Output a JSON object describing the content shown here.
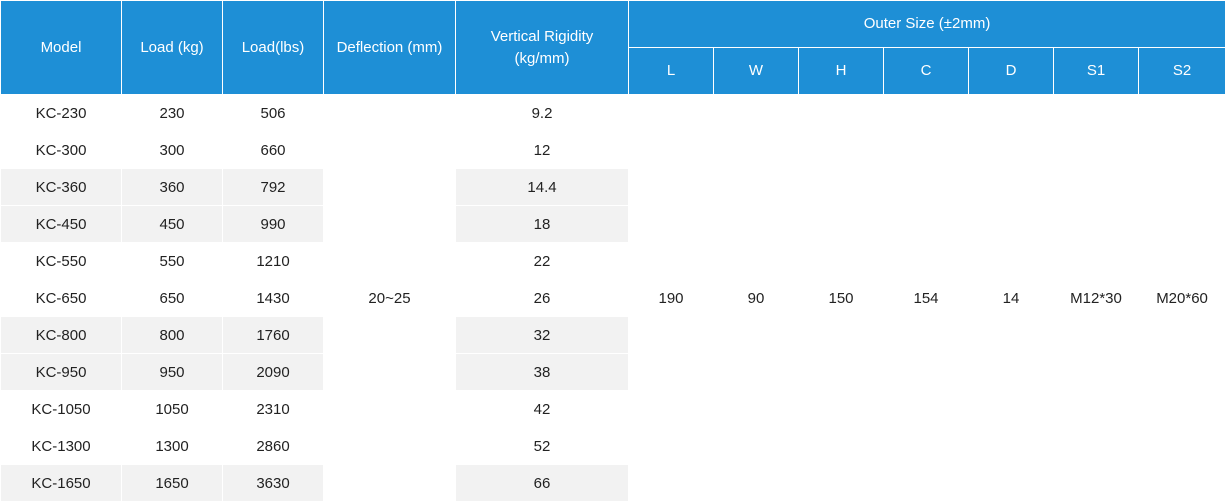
{
  "headers": {
    "model": "Model",
    "load_kg": "Load (kg)",
    "load_lbs": "Load(lbs)",
    "deflection": "Deflection (mm)",
    "rigidity_line1": "Vertical Rigidity",
    "rigidity_line2": "(kg/mm)",
    "outer_size": "Outer Size (±2mm)",
    "sub": [
      "L",
      "W",
      "H",
      "C",
      "D",
      "S1",
      "S2"
    ]
  },
  "rows": [
    {
      "model": "KC-230",
      "load_kg": "230",
      "load_lbs": "506",
      "rigidity": "9.2"
    },
    {
      "model": "KC-300",
      "load_kg": "300",
      "load_lbs": "660",
      "rigidity": "12"
    },
    {
      "model": "KC-360",
      "load_kg": "360",
      "load_lbs": "792",
      "rigidity": "14.4"
    },
    {
      "model": "KC-450",
      "load_kg": "450",
      "load_lbs": "990",
      "rigidity": "18"
    },
    {
      "model": "KC-550",
      "load_kg": "550",
      "load_lbs": "1210",
      "rigidity": "22"
    },
    {
      "model": "KC-650",
      "load_kg": "650",
      "load_lbs": "1430",
      "rigidity": "26"
    },
    {
      "model": "KC-800",
      "load_kg": "800",
      "load_lbs": "1760",
      "rigidity": "32"
    },
    {
      "model": "KC-950",
      "load_kg": "950",
      "load_lbs": "2090",
      "rigidity": "38"
    },
    {
      "model": "KC-1050",
      "load_kg": "1050",
      "load_lbs": "2310",
      "rigidity": "42"
    },
    {
      "model": "KC-1300",
      "load_kg": "1300",
      "load_lbs": "2860",
      "rigidity": "52"
    },
    {
      "model": "KC-1650",
      "load_kg": "1650",
      "load_lbs": "3630",
      "rigidity": "66"
    }
  ],
  "shared": {
    "deflection": "20~25",
    "L": "190",
    "W": "90",
    "H": "150",
    "C": "154",
    "D": "14",
    "S1": "M12*30",
    "S2": "M20*60"
  },
  "colors": {
    "header_bg": "#1e8fd6",
    "header_text": "#ffffff",
    "row_shade": "#f2f2f2"
  }
}
